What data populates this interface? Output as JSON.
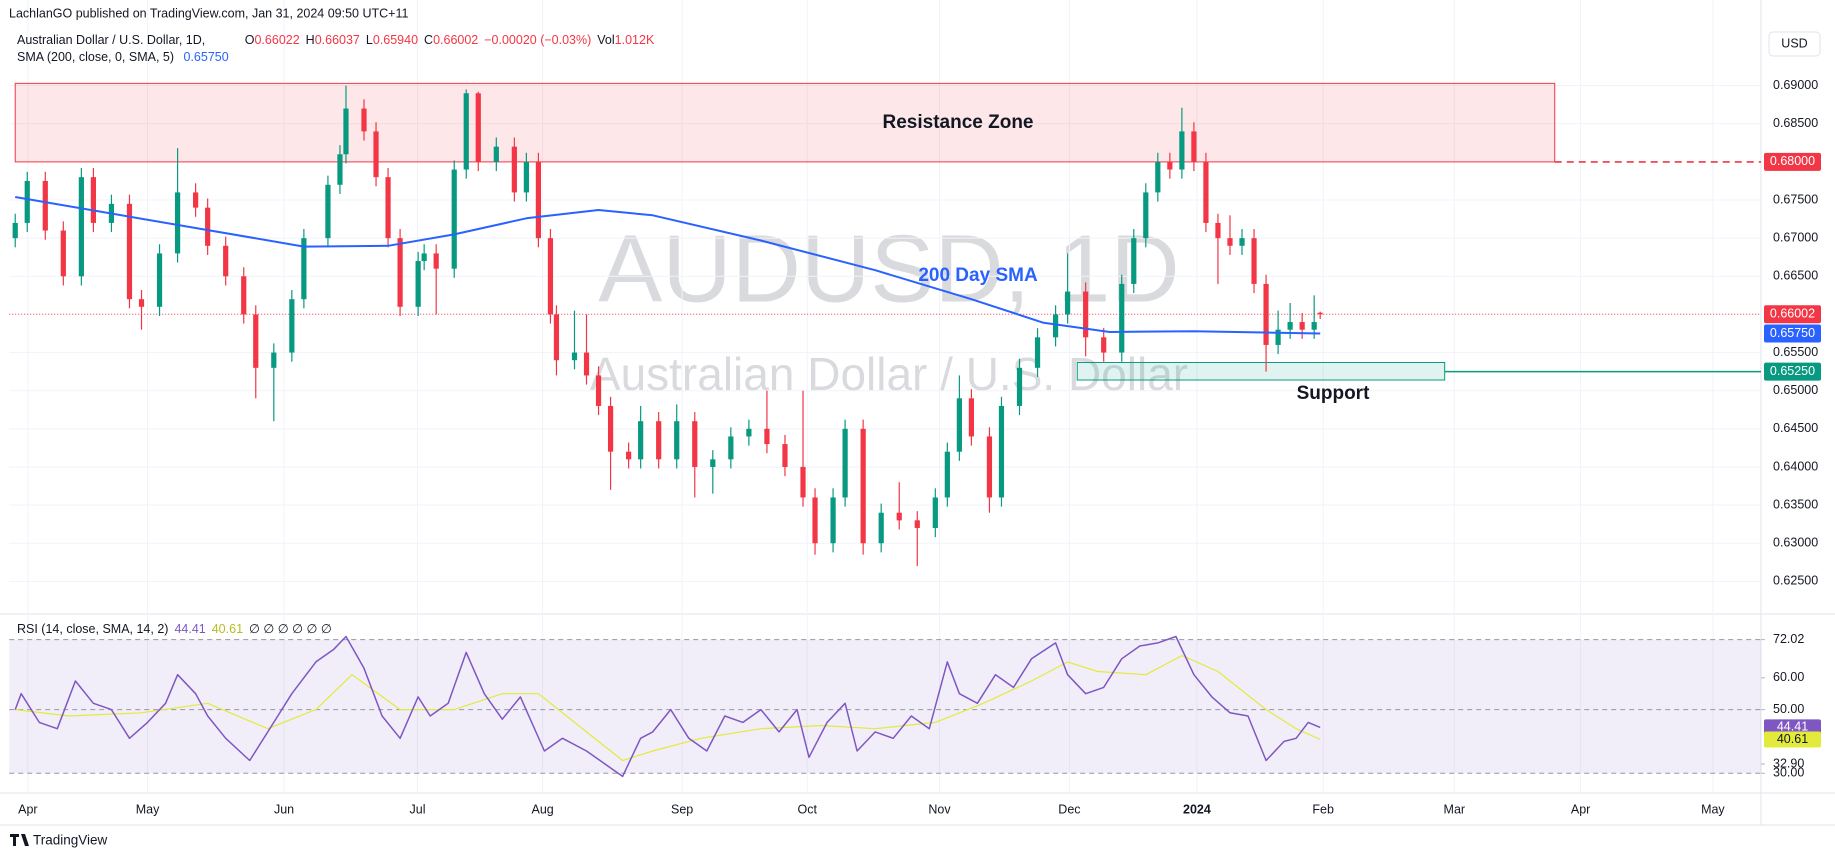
{
  "header": {
    "published": "LachlanGO published on TradingView.com, Jan 31, 2024 09:50 UTC+11",
    "currency": "USD",
    "logo": "TradingView"
  },
  "legend": {
    "symbol": "Australian Dollar / U.S. Dollar, 1D,",
    "quote": [
      {
        "key": "O",
        "value": "0.66022"
      },
      {
        "key": "H",
        "value": "0.66037"
      },
      {
        "key": "L",
        "value": "0.65940"
      },
      {
        "key": "C",
        "value": "0.66002"
      }
    ],
    "change": "−0.00020 (−0.03%)",
    "volume_key": "Vol",
    "volume": "1.012K",
    "sma_label": "SMA (200, close, 0, SMA, 5)",
    "sma_value": "0.65750"
  },
  "chart_data": {
    "type": "candlestick",
    "title": "AUDUSD, 1D",
    "subtitle": "Australian Dollar / U.S. Dollar",
    "up_color": "#089981",
    "down_color": "#f23645",
    "grid": true,
    "x": [
      0,
      2,
      5,
      8,
      11,
      13,
      16,
      19,
      21,
      24,
      27,
      30,
      32,
      35,
      38,
      40,
      43,
      46,
      48,
      52,
      54,
      55,
      58,
      60,
      62,
      64,
      67,
      68,
      70,
      73,
      75,
      77,
      80,
      83,
      85,
      87,
      89,
      90,
      93,
      95,
      97,
      99,
      102,
      104,
      107,
      110,
      113,
      116,
      119,
      122,
      125,
      128,
      131,
      133,
      136,
      138,
      141,
      144,
      147,
      150,
      153,
      155,
      157,
      159,
      162,
      164,
      167,
      170,
      173,
      175,
      178,
      181,
      184,
      186,
      188,
      190,
      192,
      194,
      196,
      198,
      200,
      202,
      204,
      206,
      208,
      210,
      212,
      214,
      216,
      217
    ],
    "ohlc": [
      [
        0.67,
        0.6732,
        0.6688,
        0.672
      ],
      [
        0.672,
        0.6787,
        0.6708,
        0.6775
      ],
      [
        0.6775,
        0.6787,
        0.6698,
        0.671
      ],
      [
        0.671,
        0.6722,
        0.6638,
        0.665
      ],
      [
        0.665,
        0.6792,
        0.6638,
        0.678
      ],
      [
        0.678,
        0.6792,
        0.6708,
        0.672
      ],
      [
        0.672,
        0.6757,
        0.6708,
        0.6745
      ],
      [
        0.6745,
        0.6757,
        0.6608,
        0.662
      ],
      [
        0.662,
        0.6632,
        0.658,
        0.661
      ],
      [
        0.661,
        0.6692,
        0.6598,
        0.668
      ],
      [
        0.668,
        0.6818,
        0.6668,
        0.676
      ],
      [
        0.676,
        0.6772,
        0.6728,
        0.674
      ],
      [
        0.674,
        0.6752,
        0.6678,
        0.669
      ],
      [
        0.669,
        0.6702,
        0.6638,
        0.665
      ],
      [
        0.665,
        0.6662,
        0.6588,
        0.66
      ],
      [
        0.66,
        0.6612,
        0.649,
        0.653
      ],
      [
        0.653,
        0.6562,
        0.646,
        0.655
      ],
      [
        0.655,
        0.6632,
        0.6538,
        0.662
      ],
      [
        0.662,
        0.6712,
        0.6608,
        0.67
      ],
      [
        0.67,
        0.6782,
        0.6688,
        0.677
      ],
      [
        0.677,
        0.6822,
        0.6758,
        0.681
      ],
      [
        0.681,
        0.69,
        0.6798,
        0.687
      ],
      [
        0.687,
        0.6882,
        0.6828,
        0.684
      ],
      [
        0.684,
        0.6852,
        0.6768,
        0.678
      ],
      [
        0.678,
        0.6792,
        0.6688,
        0.67
      ],
      [
        0.67,
        0.6712,
        0.6598,
        0.661
      ],
      [
        0.661,
        0.6682,
        0.6598,
        0.667
      ],
      [
        0.667,
        0.6692,
        0.6658,
        0.668
      ],
      [
        0.668,
        0.6692,
        0.66,
        0.666
      ],
      [
        0.666,
        0.6802,
        0.6648,
        0.679
      ],
      [
        0.679,
        0.6895,
        0.6778,
        0.689
      ],
      [
        0.689,
        0.6892,
        0.6788,
        0.68
      ],
      [
        0.68,
        0.6832,
        0.6788,
        0.682
      ],
      [
        0.682,
        0.6832,
        0.6748,
        0.676
      ],
      [
        0.676,
        0.6812,
        0.6748,
        0.68
      ],
      [
        0.68,
        0.6812,
        0.6688,
        0.67
      ],
      [
        0.67,
        0.6712,
        0.6588,
        0.66
      ],
      [
        0.66,
        0.6612,
        0.652,
        0.654
      ],
      [
        0.654,
        0.6605,
        0.6528,
        0.655
      ],
      [
        0.655,
        0.66,
        0.6508,
        0.652
      ],
      [
        0.652,
        0.6532,
        0.6468,
        0.648
      ],
      [
        0.648,
        0.6492,
        0.637,
        0.642
      ],
      [
        0.642,
        0.6432,
        0.6398,
        0.641
      ],
      [
        0.641,
        0.648,
        0.6398,
        0.646
      ],
      [
        0.646,
        0.6472,
        0.6398,
        0.641
      ],
      [
        0.641,
        0.6482,
        0.6398,
        0.646
      ],
      [
        0.646,
        0.6472,
        0.636,
        0.64
      ],
      [
        0.64,
        0.6422,
        0.6365,
        0.641
      ],
      [
        0.641,
        0.6452,
        0.6398,
        0.644
      ],
      [
        0.644,
        0.6462,
        0.6428,
        0.645
      ],
      [
        0.645,
        0.65,
        0.6418,
        0.643
      ],
      [
        0.643,
        0.6442,
        0.6388,
        0.64
      ],
      [
        0.64,
        0.65,
        0.6348,
        0.636
      ],
      [
        0.636,
        0.6372,
        0.6285,
        0.63
      ],
      [
        0.63,
        0.6372,
        0.6288,
        0.636
      ],
      [
        0.636,
        0.6462,
        0.6348,
        0.645
      ],
      [
        0.645,
        0.6462,
        0.6285,
        0.63
      ],
      [
        0.63,
        0.6352,
        0.6288,
        0.634
      ],
      [
        0.634,
        0.638,
        0.6318,
        0.633
      ],
      [
        0.633,
        0.6342,
        0.627,
        0.632
      ],
      [
        0.632,
        0.6372,
        0.6308,
        0.636
      ],
      [
        0.636,
        0.6432,
        0.6348,
        0.642
      ],
      [
        0.642,
        0.652,
        0.6408,
        0.649
      ],
      [
        0.649,
        0.6502,
        0.6428,
        0.644
      ],
      [
        0.644,
        0.6452,
        0.634,
        0.636
      ],
      [
        0.636,
        0.6492,
        0.6348,
        0.648
      ],
      [
        0.648,
        0.6542,
        0.6468,
        0.653
      ],
      [
        0.653,
        0.6582,
        0.6518,
        0.657
      ],
      [
        0.657,
        0.6612,
        0.6558,
        0.66
      ],
      [
        0.66,
        0.668,
        0.6588,
        0.663
      ],
      [
        0.663,
        0.6642,
        0.6545,
        0.657
      ],
      [
        0.657,
        0.6582,
        0.6538,
        0.655
      ],
      [
        0.655,
        0.6652,
        0.6538,
        0.664
      ],
      [
        0.664,
        0.6712,
        0.6628,
        0.67
      ],
      [
        0.67,
        0.6772,
        0.6688,
        0.676
      ],
      [
        0.676,
        0.6812,
        0.6748,
        0.68
      ],
      [
        0.68,
        0.6812,
        0.6778,
        0.679
      ],
      [
        0.679,
        0.6871,
        0.6778,
        0.684
      ],
      [
        0.684,
        0.6852,
        0.6788,
        0.68
      ],
      [
        0.68,
        0.6812,
        0.6708,
        0.672
      ],
      [
        0.672,
        0.6732,
        0.664,
        0.67
      ],
      [
        0.67,
        0.673,
        0.6678,
        0.669
      ],
      [
        0.669,
        0.6712,
        0.6678,
        0.67
      ],
      [
        0.67,
        0.6712,
        0.6628,
        0.664
      ],
      [
        0.664,
        0.6652,
        0.6525,
        0.656
      ],
      [
        0.656,
        0.6605,
        0.6548,
        0.658
      ],
      [
        0.658,
        0.6615,
        0.6568,
        0.659
      ],
      [
        0.659,
        0.6602,
        0.6568,
        0.658
      ],
      [
        0.658,
        0.6625,
        0.6568,
        0.659
      ],
      [
        0.66022,
        0.66037,
        0.6594,
        0.66002
      ]
    ],
    "xlim": [
      -1,
      290.3
    ],
    "xticks": [
      {
        "value": 2.1,
        "label": "Apr"
      },
      {
        "value": 22,
        "label": "May"
      },
      {
        "value": 44.7,
        "label": "Jun"
      },
      {
        "value": 66.9,
        "label": "Jul"
      },
      {
        "value": 87.7,
        "label": "Aug"
      },
      {
        "value": 110.9,
        "label": "Sep"
      },
      {
        "value": 131.7,
        "label": "Oct"
      },
      {
        "value": 153.7,
        "label": "Nov"
      },
      {
        "value": 175.3,
        "label": "Dec"
      },
      {
        "value": 196.5,
        "label": "2024",
        "bold": true
      },
      {
        "value": 217.5,
        "label": "Feb"
      },
      {
        "value": 239.3,
        "label": "Mar"
      },
      {
        "value": 260.3,
        "label": "Apr"
      },
      {
        "value": 282.3,
        "label": "May"
      }
    ],
    "ylim": [
      0.62085,
      0.70123
    ],
    "yticks": [
      {
        "value": 0.625,
        "label": "0.62500"
      },
      {
        "value": 0.63,
        "label": "0.63000"
      },
      {
        "value": 0.635,
        "label": "0.63500"
      },
      {
        "value": 0.64,
        "label": "0.64000"
      },
      {
        "value": 0.645,
        "label": "0.64500"
      },
      {
        "value": 0.65,
        "label": "0.65000"
      },
      {
        "value": 0.655,
        "label": "0.65500"
      },
      {
        "value": 0.665,
        "label": "0.66500"
      },
      {
        "value": 0.67,
        "label": "0.67000"
      },
      {
        "value": 0.675,
        "label": "0.67500"
      },
      {
        "value": 0.685,
        "label": "0.68500"
      },
      {
        "value": 0.69,
        "label": "0.69000"
      }
    ],
    "sma": {
      "color": "#2962ff",
      "label": "200 Day SMA",
      "x": [
        0,
        48,
        62,
        73,
        85,
        97,
        106,
        124,
        143,
        159,
        171,
        182,
        196,
        217
      ],
      "values": [
        0.6754,
        0.6689,
        0.669,
        0.6705,
        0.6726,
        0.6737,
        0.673,
        0.6697,
        0.6658,
        0.662,
        0.6589,
        0.6577,
        0.6578,
        0.6575
      ]
    },
    "resistance_zone": {
      "label": "Resistance Zone",
      "x": [
        0,
        256
      ],
      "y": [
        0.68,
        0.6903
      ],
      "color": "#f23645"
    },
    "support_zone": {
      "label": "Support",
      "x": [
        176.6,
        237.7
      ],
      "y": [
        0.6514,
        0.6537
      ],
      "color": "#089981"
    },
    "price_tags": [
      {
        "value": 0.68,
        "label": "0.68000",
        "color": "#f23645",
        "line": "dashed",
        "from": 256
      },
      {
        "value": 0.66002,
        "label": "0.66002",
        "color": "#f23645",
        "line": "dotted",
        "from": -1
      },
      {
        "value": 0.6575,
        "label": "0.65750",
        "color": "#2962ff",
        "line": "none",
        "from": -1
      },
      {
        "value": 0.6525,
        "label": "0.65250",
        "color": "#089981",
        "line": "solid",
        "from": 237.7
      }
    ],
    "rsi": {
      "type": "line",
      "label": "RSI (14, close, SMA, 14, 2)",
      "extras": "∅ ∅ ∅ ∅ ∅ ∅",
      "ylim": [
        24.1,
        79.76
      ],
      "yticks": [
        72.02,
        {
          "value": 60,
          "label": "60.00"
        },
        {
          "value": 50,
          "label": "50.00"
        },
        {
          "value": 32.9,
          "label": "32.90"
        },
        {
          "value": 30,
          "label": "30.00"
        }
      ],
      "levels": [
        30,
        50,
        72.02
      ],
      "band_color": "#7e57c2",
      "series": [
        {
          "color": "#7e57c2",
          "tag_text": "#ffffff",
          "x": [
            0,
            1,
            4,
            7,
            10,
            13,
            16,
            19,
            22,
            25,
            27,
            30,
            32,
            35,
            39,
            42,
            46,
            50,
            53,
            55,
            58,
            61,
            64,
            67,
            69,
            72,
            75,
            78,
            81,
            84,
            88,
            91,
            95,
            98,
            101,
            104,
            106,
            109,
            112,
            115,
            118,
            121,
            124,
            127,
            130,
            132,
            135,
            138,
            140,
            143,
            146,
            149,
            152,
            155,
            157,
            160,
            163,
            166,
            169,
            173,
            175,
            178,
            181,
            184,
            187,
            190,
            193,
            196,
            199,
            202,
            205,
            208,
            211,
            213,
            215,
            217
          ],
          "values": [
            50,
            55,
            46,
            44,
            59,
            52,
            50,
            41,
            46,
            52,
            61,
            55,
            48,
            41,
            34,
            43,
            55,
            65,
            69,
            73,
            63,
            48,
            41,
            54,
            48,
            52,
            68,
            55,
            47,
            54,
            37,
            41,
            37,
            33,
            29,
            41,
            43,
            50,
            41,
            37,
            48,
            46,
            50,
            43,
            50,
            35,
            46,
            52,
            37,
            43,
            41,
            48,
            44,
            65,
            55,
            52,
            61,
            57,
            66,
            71,
            61,
            55,
            57,
            66,
            70,
            71,
            73,
            61,
            54,
            49,
            48,
            34,
            40,
            41,
            46,
            44.41
          ]
        },
        {
          "color": "#e2ea3c",
          "tag_text": "#131722",
          "x": [
            0,
            9,
            21,
            32,
            42,
            50,
            56,
            64,
            73,
            81,
            87,
            95,
            101,
            106,
            114,
            124,
            134,
            143,
            153,
            161,
            169,
            175,
            180,
            188,
            194,
            200,
            208,
            213,
            217
          ],
          "values": [
            50,
            48,
            49,
            52,
            44,
            50,
            61,
            50,
            50,
            55,
            55,
            43,
            34,
            37,
            41,
            44,
            45,
            44,
            46,
            52,
            59,
            65,
            62,
            61,
            67,
            62,
            50,
            44,
            40.61
          ]
        }
      ]
    }
  }
}
